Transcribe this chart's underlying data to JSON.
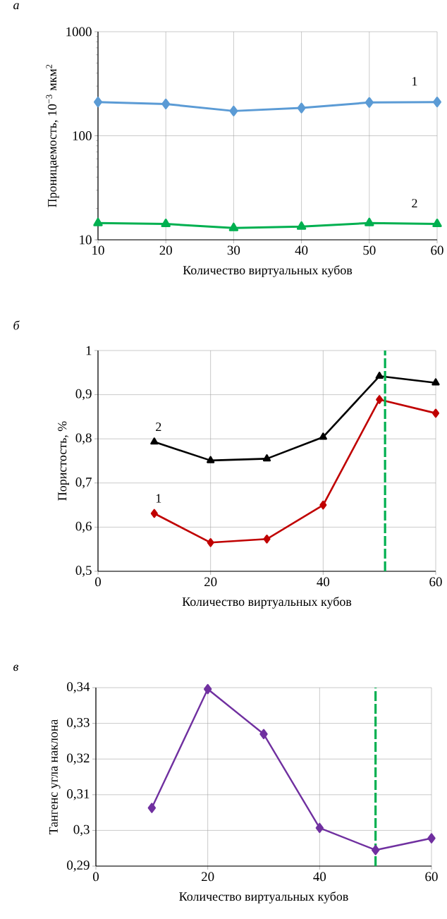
{
  "chart_data": [
    {
      "type": "line",
      "title": "а",
      "xlabel": "Количество виртуальных кубов",
      "ylabel": "Проницаемость, 10$^{−3}$ мкм$^{2}$",
      "log": "y",
      "grid": true,
      "x": [
        10,
        20,
        30,
        40,
        50,
        60
      ],
      "xlim": [
        10,
        60
      ],
      "xticks": [
        10,
        20,
        30,
        40,
        50,
        60
      ],
      "ylim": [
        10,
        1000
      ],
      "yticks": [
        10,
        100,
        1000
      ],
      "series": [
        {
          "name": "1",
          "color": "#5b9bd5",
          "marker": "diamond",
          "values": [
            211,
            202,
            173,
            185,
            209,
            211
          ]
        },
        {
          "name": "2",
          "color": "#00b050",
          "marker": "triangle",
          "values": [
            14.5,
            14.2,
            13.0,
            13.4,
            14.5,
            14.2
          ]
        }
      ]
    },
    {
      "type": "line",
      "title": "б",
      "xlabel": "Количество виртуальных кубов",
      "ylabel": "Пористость, %",
      "grid": true,
      "x": [
        10,
        20,
        30,
        40,
        50,
        60
      ],
      "xlim": [
        0,
        60
      ],
      "xticks": [
        0,
        20,
        40,
        60
      ],
      "ylim": [
        0.5,
        1
      ],
      "yticks": [
        {
          "value": 0.5,
          "label": "0,5"
        },
        {
          "value": 0.6,
          "label": "0,6"
        },
        {
          "value": 0.7,
          "label": "0,7"
        },
        {
          "value": 0.8,
          "label": "0,8"
        },
        {
          "value": 0.9,
          "label": "0,9"
        },
        1
      ],
      "series": [
        {
          "name": "1",
          "color": "#c00000",
          "marker": "diamond",
          "values": [
            0.631,
            0.565,
            0.573,
            0.65,
            0.889,
            0.858
          ]
        },
        {
          "name": "2",
          "color": "#000000",
          "marker": "triangle",
          "values": [
            0.793,
            0.751,
            0.755,
            0.804,
            0.942,
            0.927
          ]
        }
      ],
      "ref_lines": [
        {
          "axis": "x",
          "value": 51,
          "color": "#00b050",
          "line_style": "dashed"
        }
      ]
    },
    {
      "type": "line",
      "title": "в",
      "xlabel": "Количество виртуальных кубов",
      "ylabel": "Тангенс угла наклона",
      "grid": true,
      "x": [
        10,
        20,
        30,
        40,
        50,
        60
      ],
      "xlim": [
        0,
        60
      ],
      "xticks": [
        0,
        20,
        40,
        60
      ],
      "ylim": [
        0.29,
        0.34
      ],
      "yticks": [
        {
          "value": 0.29,
          "label": "0,29"
        },
        {
          "value": 0.3,
          "label": "0,3"
        },
        {
          "value": 0.31,
          "label": "0,31"
        },
        {
          "value": 0.32,
          "label": "0,32"
        },
        {
          "value": 0.33,
          "label": "0,33"
        },
        {
          "value": 0.34,
          "label": "0,34"
        }
      ],
      "series": [
        {
          "color": "#7030a0",
          "marker": "diamond",
          "values": [
            0.3063,
            0.3396,
            0.327,
            0.3007,
            0.2945,
            0.2978
          ]
        }
      ],
      "ref_lines": [
        {
          "axis": "x",
          "value": 50,
          "color": "#00b050",
          "line_style": "dashed"
        }
      ]
    }
  ]
}
